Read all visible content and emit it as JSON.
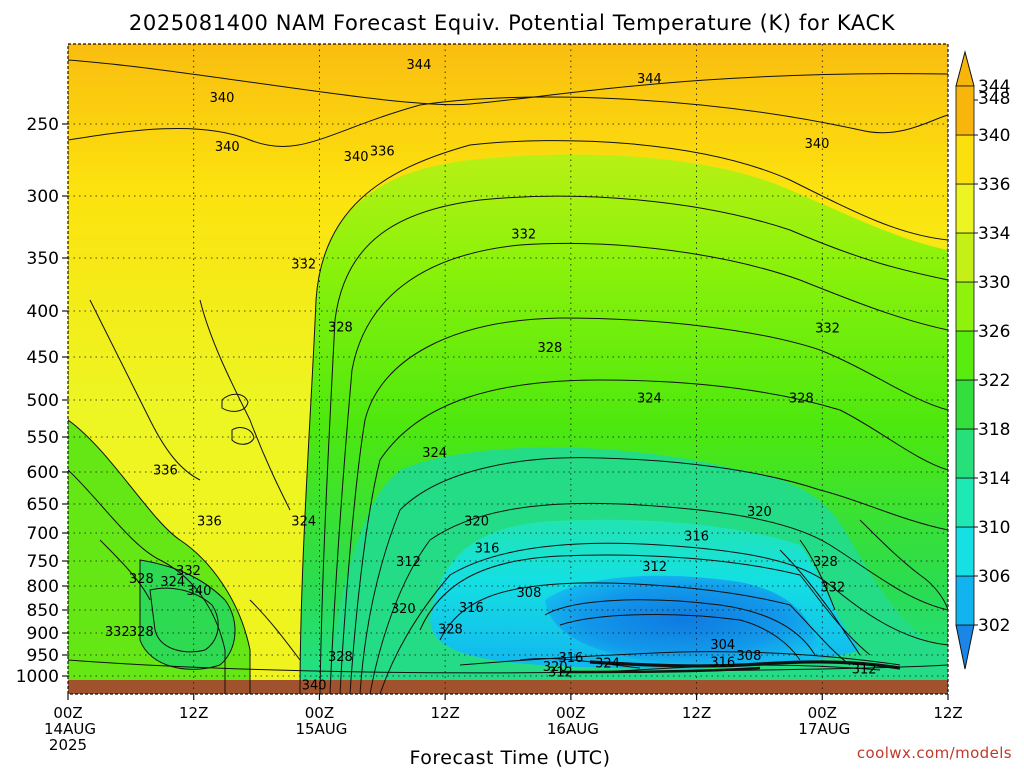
{
  "chart_data": {
    "type": "heatmap",
    "title": "2025081400 NAM Forecast Equiv. Potential Temperature (K) for KACK",
    "xlabel": "Forecast Time (UTC)",
    "credit": "coolwx.com/models",
    "y_axis": {
      "ticks": [
        250,
        300,
        350,
        400,
        450,
        500,
        550,
        600,
        650,
        700,
        750,
        800,
        850,
        900,
        950,
        1000
      ],
      "range": [
        200,
        1030
      ],
      "inverted": true
    },
    "x_axis": {
      "range": [
        0,
        84
      ],
      "ticks": [
        {
          "hour": 0,
          "label": "00Z",
          "day": "14AUG",
          "year": "2025"
        },
        {
          "hour": 12,
          "label": "12Z",
          "day": "",
          "year": ""
        },
        {
          "hour": 24,
          "label": "00Z",
          "day": "15AUG",
          "year": ""
        },
        {
          "hour": 36,
          "label": "12Z",
          "day": "",
          "year": ""
        },
        {
          "hour": 48,
          "label": "00Z",
          "day": "16AUG",
          "year": ""
        },
        {
          "hour": 60,
          "label": "12Z",
          "day": "",
          "year": ""
        },
        {
          "hour": 72,
          "label": "00Z",
          "day": "17AUG",
          "year": ""
        },
        {
          "hour": 84,
          "label": "12Z",
          "day": "",
          "year": ""
        }
      ]
    },
    "grid": true,
    "colorbar": {
      "levels": [
        302,
        306,
        310,
        314,
        318,
        322,
        326,
        330,
        334,
        336,
        340,
        344,
        348
      ],
      "colors": [
        "#1a86e6",
        "#12b4f0",
        "#16e0e4",
        "#1ee8b4",
        "#28e07a",
        "#34de3c",
        "#5aec0e",
        "#8ef20c",
        "#c4f018",
        "#ecf422",
        "#fce00e",
        "#f8b60c"
      ]
    },
    "contour_labels": [
      {
        "t": 33.5,
        "p": 207,
        "v": "344"
      },
      {
        "t": 55.5,
        "p": 217,
        "v": "344"
      },
      {
        "t": 14.7,
        "p": 231,
        "v": "340"
      },
      {
        "t": 27.5,
        "p": 273,
        "v": "340"
      },
      {
        "t": 71.5,
        "p": 264,
        "v": "340"
      },
      {
        "t": 15.2,
        "p": 266,
        "v": "340"
      },
      {
        "t": 30.0,
        "p": 269,
        "v": "336"
      },
      {
        "t": 43.5,
        "p": 331,
        "v": "332"
      },
      {
        "t": 22.5,
        "p": 356,
        "v": "332"
      },
      {
        "t": 26.0,
        "p": 418,
        "v": "328"
      },
      {
        "t": 46.0,
        "p": 440,
        "v": "328"
      },
      {
        "t": 72.5,
        "p": 419,
        "v": "332"
      },
      {
        "t": 55.5,
        "p": 498,
        "v": "324"
      },
      {
        "t": 35.0,
        "p": 573,
        "v": "324"
      },
      {
        "t": 70.0,
        "p": 498,
        "v": "328"
      },
      {
        "t": 9.3,
        "p": 598,
        "v": "336"
      },
      {
        "t": 13.5,
        "p": 680,
        "v": "336"
      },
      {
        "t": 22.5,
        "p": 680,
        "v": "324"
      },
      {
        "t": 39.0,
        "p": 680,
        "v": "320"
      },
      {
        "t": 40.0,
        "p": 728,
        "v": "316"
      },
      {
        "t": 66.0,
        "p": 664,
        "v": "320"
      },
      {
        "t": 60.0,
        "p": 706,
        "v": "316"
      },
      {
        "t": 32.5,
        "p": 752,
        "v": "312"
      },
      {
        "t": 56.0,
        "p": 762,
        "v": "312"
      },
      {
        "t": 72.3,
        "p": 752,
        "v": "328"
      },
      {
        "t": 44.0,
        "p": 815,
        "v": "308"
      },
      {
        "t": 32.0,
        "p": 848,
        "v": "320"
      },
      {
        "t": 38.5,
        "p": 846,
        "v": "316"
      },
      {
        "t": 73.0,
        "p": 803,
        "v": "332"
      },
      {
        "t": 11.5,
        "p": 770,
        "v": "332"
      },
      {
        "t": 7.0,
        "p": 786,
        "v": "328"
      },
      {
        "t": 10.0,
        "p": 792,
        "v": "324"
      },
      {
        "t": 12.5,
        "p": 810,
        "v": "340"
      },
      {
        "t": 4.7,
        "p": 898,
        "v": "332"
      },
      {
        "t": 7.0,
        "p": 898,
        "v": "328"
      },
      {
        "t": 36.5,
        "p": 892,
        "v": "328"
      },
      {
        "t": 26.0,
        "p": 955,
        "v": "328"
      },
      {
        "t": 62.5,
        "p": 927,
        "v": "304"
      },
      {
        "t": 65.0,
        "p": 952,
        "v": "308"
      },
      {
        "t": 48.0,
        "p": 957,
        "v": "316"
      },
      {
        "t": 46.5,
        "p": 978,
        "v": "320"
      },
      {
        "t": 51.5,
        "p": 970,
        "v": "324"
      },
      {
        "t": 47.0,
        "p": 992,
        "v": "312"
      },
      {
        "t": 62.5,
        "p": 968,
        "v": "316"
      },
      {
        "t": 76.0,
        "p": 985,
        "v": "312"
      },
      {
        "t": 23.5,
        "p": 1023,
        "v": "340"
      }
    ]
  }
}
